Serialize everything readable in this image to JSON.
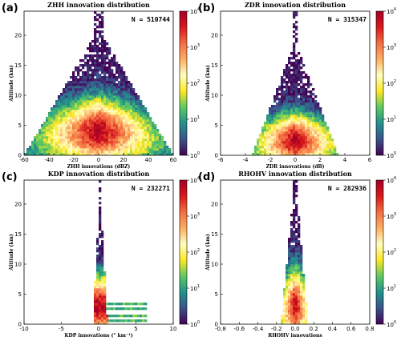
{
  "colormap": [
    "#440154",
    "#3b528b",
    "#21918c",
    "#5ec962",
    "#fde725",
    "#ffffbf",
    "#fdae61",
    "#f46d43",
    "#d7191c",
    "#a50026"
  ],
  "colorbar": {
    "ticks": [
      {
        "base": "10",
        "exp": "0"
      },
      {
        "base": "10",
        "exp": "1"
      },
      {
        "base": "10",
        "exp": "2"
      },
      {
        "base": "10",
        "exp": "3"
      },
      {
        "base": "10",
        "exp": "4"
      }
    ]
  },
  "chart_data": [
    {
      "type": "heatmap",
      "panel_label": "(a)",
      "title": "ZHH innovation distribution",
      "n_label": "N = 510744",
      "xlabel": "ZHH innovations (dBZ)",
      "ylabel": "Altitude (km)",
      "xlim": [
        -60,
        60
      ],
      "ylim": [
        0,
        24
      ],
      "xticks": [
        "-60",
        "-40",
        "-20",
        "0",
        "20",
        "40",
        "60"
      ],
      "yticks": [
        "0",
        "5",
        "10",
        "15",
        "20"
      ],
      "color_scale": "log",
      "color_range": [
        1,
        10000
      ]
    },
    {
      "type": "heatmap",
      "panel_label": "(b)",
      "title": "ZDR innovation distribution",
      "n_label": "N = 315347",
      "xlabel": "ZDR innovations (dB)",
      "ylabel": "Altitude (km)",
      "xlim": [
        -6,
        6
      ],
      "ylim": [
        0,
        24
      ],
      "xticks": [
        "-6",
        "-4",
        "-2",
        "0",
        "2",
        "4",
        "6"
      ],
      "yticks": [
        "0",
        "5",
        "10",
        "15",
        "20"
      ],
      "color_scale": "log",
      "color_range": [
        1,
        10000
      ]
    },
    {
      "type": "heatmap",
      "panel_label": "(c)",
      "title": "KDP innovation distribution",
      "n_label": "N = 232271",
      "xlabel": "KDP innovations (° km⁻¹)",
      "ylabel": "Altitude (km)",
      "xlim": [
        -10,
        10
      ],
      "ylim": [
        0,
        24
      ],
      "xticks": [
        "-10",
        "-5",
        "0",
        "5",
        "10"
      ],
      "yticks": [
        "0",
        "5",
        "10",
        "15",
        "20"
      ],
      "color_scale": "log",
      "color_range": [
        1,
        10000
      ]
    },
    {
      "type": "heatmap",
      "panel_label": "(d)",
      "title": "RHOHV innovation distribution",
      "n_label": "N = 282936",
      "xlabel": "RHOHV innovations",
      "ylabel": "Altitude (km)",
      "xlim": [
        -0.8,
        0.8
      ],
      "ylim": [
        0,
        24
      ],
      "xticks": [
        "-0.8",
        "-0.6",
        "-0.4",
        "-0.2",
        "0.0",
        "0.2",
        "0.4",
        "0.6",
        "0.8"
      ],
      "yticks": [
        "0",
        "5",
        "10",
        "15",
        "20"
      ],
      "color_scale": "log",
      "color_range": [
        1,
        10000
      ]
    }
  ]
}
